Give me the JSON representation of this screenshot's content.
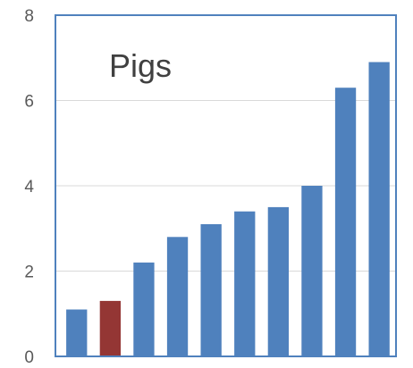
{
  "chart_data": {
    "type": "bar",
    "title": "Pigs",
    "xlabel": "",
    "ylabel": "",
    "ylim": [
      0,
      8
    ],
    "yticks": [
      0,
      2,
      4,
      6,
      8
    ],
    "grid": "horizontal",
    "series": [
      {
        "values": [
          1.1,
          1.3,
          2.2,
          2.8,
          3.1,
          3.4,
          3.5,
          4.0,
          6.3,
          6.9
        ]
      }
    ],
    "bar_colors": [
      "#4f81bd",
      "#943634",
      "#4f81bd",
      "#4f81bd",
      "#4f81bd",
      "#4f81bd",
      "#4f81bd",
      "#4f81bd",
      "#4f81bd",
      "#4f81bd"
    ],
    "colors": {
      "bar": "#4f81bd",
      "highlight_bar": "#943634",
      "plot_border": "#4f81bd",
      "grid": "#d9d9d9",
      "text": "#595959"
    }
  }
}
